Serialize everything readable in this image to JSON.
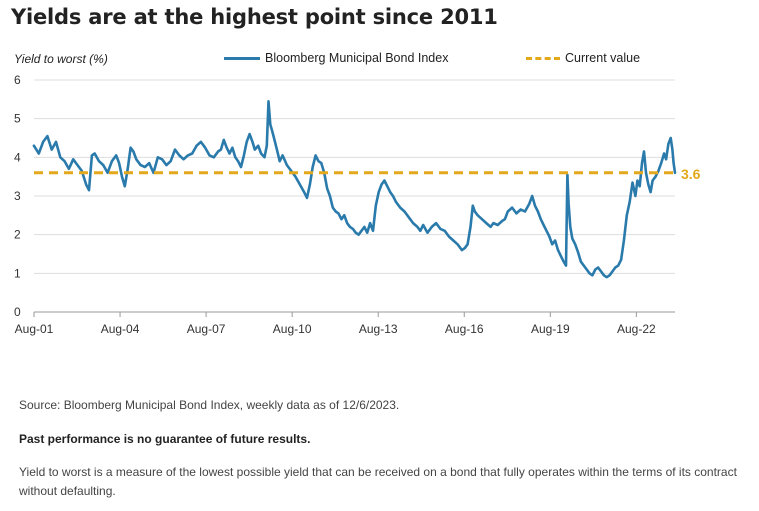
{
  "title": "Yields are at the highest point since 2011",
  "source_note": "Source: Bloomberg Municipal Bond Index, weekly data as of 12/6/2023.",
  "performance_note": "Past performance is no guarantee of future results.",
  "definition_note": "Yield to worst is a measure of the lowest possible yield that can be received on a bond that fully operates within the terms of its contract without defaulting.",
  "colors": {
    "series": "#2a7bac",
    "current": "#e3a81b",
    "grid": "#dddddd",
    "axis": "#999999"
  },
  "chart_data": {
    "type": "line",
    "title": "Yields are at the highest point since 2011",
    "ylabel": "Yield to worst  (%)",
    "xlabel": "",
    "ylim": [
      0,
      6
    ],
    "yticks": [
      0,
      1,
      2,
      3,
      4,
      5,
      6
    ],
    "xlim": [
      2001.583,
      2023.93
    ],
    "xticks": [
      {
        "value": 2001.583,
        "label": "Aug-01"
      },
      {
        "value": 2004.583,
        "label": "Aug-04"
      },
      {
        "value": 2007.583,
        "label": "Aug-07"
      },
      {
        "value": 2010.583,
        "label": "Aug-10"
      },
      {
        "value": 2013.583,
        "label": "Aug-13"
      },
      {
        "value": 2016.583,
        "label": "Aug-16"
      },
      {
        "value": 2019.583,
        "label": "Aug-19"
      },
      {
        "value": 2022.583,
        "label": "Aug-22"
      }
    ],
    "grid": true,
    "legend_position": "top",
    "series": [
      {
        "name": "Bloomberg Municipal Bond Index",
        "points": [
          [
            2001.58,
            4.3
          ],
          [
            2001.75,
            4.1
          ],
          [
            2001.9,
            4.4
          ],
          [
            2002.05,
            4.55
          ],
          [
            2002.2,
            4.2
          ],
          [
            2002.35,
            4.4
          ],
          [
            2002.5,
            4.0
          ],
          [
            2002.65,
            3.9
          ],
          [
            2002.8,
            3.7
          ],
          [
            2002.95,
            3.95
          ],
          [
            2003.1,
            3.8
          ],
          [
            2003.25,
            3.65
          ],
          [
            2003.4,
            3.3
          ],
          [
            2003.5,
            3.15
          ],
          [
            2003.6,
            4.05
          ],
          [
            2003.7,
            4.1
          ],
          [
            2003.85,
            3.9
          ],
          [
            2004.0,
            3.8
          ],
          [
            2004.15,
            3.6
          ],
          [
            2004.3,
            3.9
          ],
          [
            2004.45,
            4.05
          ],
          [
            2004.55,
            3.85
          ],
          [
            2004.65,
            3.5
          ],
          [
            2004.75,
            3.25
          ],
          [
            2004.85,
            3.7
          ],
          [
            2004.95,
            4.25
          ],
          [
            2005.05,
            4.15
          ],
          [
            2005.15,
            3.95
          ],
          [
            2005.3,
            3.8
          ],
          [
            2005.45,
            3.75
          ],
          [
            2005.6,
            3.85
          ],
          [
            2005.75,
            3.6
          ],
          [
            2005.9,
            4.0
          ],
          [
            2006.05,
            3.95
          ],
          [
            2006.2,
            3.8
          ],
          [
            2006.35,
            3.9
          ],
          [
            2006.5,
            4.2
          ],
          [
            2006.65,
            4.05
          ],
          [
            2006.8,
            3.95
          ],
          [
            2006.95,
            4.05
          ],
          [
            2007.1,
            4.1
          ],
          [
            2007.25,
            4.3
          ],
          [
            2007.4,
            4.4
          ],
          [
            2007.55,
            4.25
          ],
          [
            2007.7,
            4.05
          ],
          [
            2007.85,
            4.0
          ],
          [
            2008.0,
            4.15
          ],
          [
            2008.1,
            4.2
          ],
          [
            2008.2,
            4.45
          ],
          [
            2008.3,
            4.25
          ],
          [
            2008.4,
            4.1
          ],
          [
            2008.5,
            4.25
          ],
          [
            2008.6,
            4.0
          ],
          [
            2008.7,
            3.9
          ],
          [
            2008.8,
            3.75
          ],
          [
            2008.9,
            4.05
          ],
          [
            2009.0,
            4.4
          ],
          [
            2009.1,
            4.6
          ],
          [
            2009.2,
            4.4
          ],
          [
            2009.28,
            4.2
          ],
          [
            2009.4,
            4.3
          ],
          [
            2009.5,
            4.1
          ],
          [
            2009.62,
            4.0
          ],
          [
            2009.7,
            4.3
          ],
          [
            2009.76,
            5.45
          ],
          [
            2009.82,
            4.85
          ],
          [
            2009.88,
            4.7
          ],
          [
            2009.95,
            4.5
          ],
          [
            2010.05,
            4.2
          ],
          [
            2010.15,
            3.9
          ],
          [
            2010.25,
            4.05
          ],
          [
            2010.4,
            3.8
          ],
          [
            2010.55,
            3.65
          ],
          [
            2010.7,
            3.5
          ],
          [
            2010.85,
            3.3
          ],
          [
            2011.0,
            3.1
          ],
          [
            2011.1,
            2.95
          ],
          [
            2011.2,
            3.3
          ],
          [
            2011.3,
            3.75
          ],
          [
            2011.4,
            4.05
          ],
          [
            2011.5,
            3.9
          ],
          [
            2011.6,
            3.85
          ],
          [
            2011.7,
            3.6
          ],
          [
            2011.8,
            3.2
          ],
          [
            2011.9,
            3.0
          ],
          [
            2012.0,
            2.7
          ],
          [
            2012.1,
            2.6
          ],
          [
            2012.2,
            2.55
          ],
          [
            2012.3,
            2.4
          ],
          [
            2012.4,
            2.5
          ],
          [
            2012.5,
            2.3
          ],
          [
            2012.6,
            2.2
          ],
          [
            2012.7,
            2.15
          ],
          [
            2012.8,
            2.05
          ],
          [
            2012.9,
            2.0
          ],
          [
            2013.0,
            2.1
          ],
          [
            2013.1,
            2.2
          ],
          [
            2013.2,
            2.05
          ],
          [
            2013.3,
            2.3
          ],
          [
            2013.4,
            2.1
          ],
          [
            2013.5,
            2.75
          ],
          [
            2013.6,
            3.1
          ],
          [
            2013.7,
            3.3
          ],
          [
            2013.8,
            3.4
          ],
          [
            2013.9,
            3.25
          ],
          [
            2014.0,
            3.1
          ],
          [
            2014.1,
            3.0
          ],
          [
            2014.2,
            2.85
          ],
          [
            2014.35,
            2.7
          ],
          [
            2014.5,
            2.6
          ],
          [
            2014.65,
            2.45
          ],
          [
            2014.8,
            2.3
          ],
          [
            2014.95,
            2.2
          ],
          [
            2015.05,
            2.1
          ],
          [
            2015.15,
            2.25
          ],
          [
            2015.3,
            2.05
          ],
          [
            2015.45,
            2.2
          ],
          [
            2015.6,
            2.3
          ],
          [
            2015.75,
            2.15
          ],
          [
            2015.9,
            2.1
          ],
          [
            2016.05,
            1.95
          ],
          [
            2016.2,
            1.85
          ],
          [
            2016.35,
            1.75
          ],
          [
            2016.5,
            1.6
          ],
          [
            2016.6,
            1.65
          ],
          [
            2016.7,
            1.75
          ],
          [
            2016.8,
            2.2
          ],
          [
            2016.88,
            2.75
          ],
          [
            2016.95,
            2.6
          ],
          [
            2017.05,
            2.5
          ],
          [
            2017.2,
            2.4
          ],
          [
            2017.35,
            2.3
          ],
          [
            2017.5,
            2.2
          ],
          [
            2017.6,
            2.3
          ],
          [
            2017.75,
            2.25
          ],
          [
            2017.9,
            2.35
          ],
          [
            2018.0,
            2.4
          ],
          [
            2018.1,
            2.6
          ],
          [
            2018.25,
            2.7
          ],
          [
            2018.4,
            2.55
          ],
          [
            2018.55,
            2.65
          ],
          [
            2018.7,
            2.6
          ],
          [
            2018.85,
            2.8
          ],
          [
            2018.95,
            3.0
          ],
          [
            2019.05,
            2.75
          ],
          [
            2019.15,
            2.6
          ],
          [
            2019.25,
            2.4
          ],
          [
            2019.35,
            2.25
          ],
          [
            2019.45,
            2.1
          ],
          [
            2019.55,
            1.95
          ],
          [
            2019.65,
            1.75
          ],
          [
            2019.75,
            1.85
          ],
          [
            2019.85,
            1.6
          ],
          [
            2019.95,
            1.45
          ],
          [
            2020.05,
            1.3
          ],
          [
            2020.13,
            1.2
          ],
          [
            2020.18,
            3.55
          ],
          [
            2020.22,
            2.8
          ],
          [
            2020.28,
            2.2
          ],
          [
            2020.35,
            1.9
          ],
          [
            2020.45,
            1.75
          ],
          [
            2020.55,
            1.55
          ],
          [
            2020.65,
            1.3
          ],
          [
            2020.75,
            1.2
          ],
          [
            2020.85,
            1.1
          ],
          [
            2020.95,
            1.0
          ],
          [
            2021.05,
            0.95
          ],
          [
            2021.15,
            1.1
          ],
          [
            2021.25,
            1.15
          ],
          [
            2021.35,
            1.05
          ],
          [
            2021.45,
            0.95
          ],
          [
            2021.55,
            0.9
          ],
          [
            2021.65,
            0.95
          ],
          [
            2021.75,
            1.05
          ],
          [
            2021.85,
            1.15
          ],
          [
            2021.95,
            1.2
          ],
          [
            2022.05,
            1.35
          ],
          [
            2022.15,
            1.85
          ],
          [
            2022.25,
            2.5
          ],
          [
            2022.35,
            2.85
          ],
          [
            2022.45,
            3.35
          ],
          [
            2022.55,
            3.0
          ],
          [
            2022.62,
            3.4
          ],
          [
            2022.7,
            3.25
          ],
          [
            2022.78,
            3.85
          ],
          [
            2022.85,
            4.15
          ],
          [
            2022.92,
            3.6
          ],
          [
            2023.0,
            3.3
          ],
          [
            2023.08,
            3.1
          ],
          [
            2023.15,
            3.4
          ],
          [
            2023.25,
            3.5
          ],
          [
            2023.35,
            3.65
          ],
          [
            2023.45,
            3.85
          ],
          [
            2023.55,
            4.1
          ],
          [
            2023.62,
            3.95
          ],
          [
            2023.7,
            4.35
          ],
          [
            2023.78,
            4.5
          ],
          [
            2023.84,
            4.2
          ],
          [
            2023.88,
            3.85
          ],
          [
            2023.93,
            3.6
          ]
        ]
      },
      {
        "name": "Current value",
        "value": 3.6,
        "label": "3.6",
        "style": "dashed"
      }
    ]
  }
}
